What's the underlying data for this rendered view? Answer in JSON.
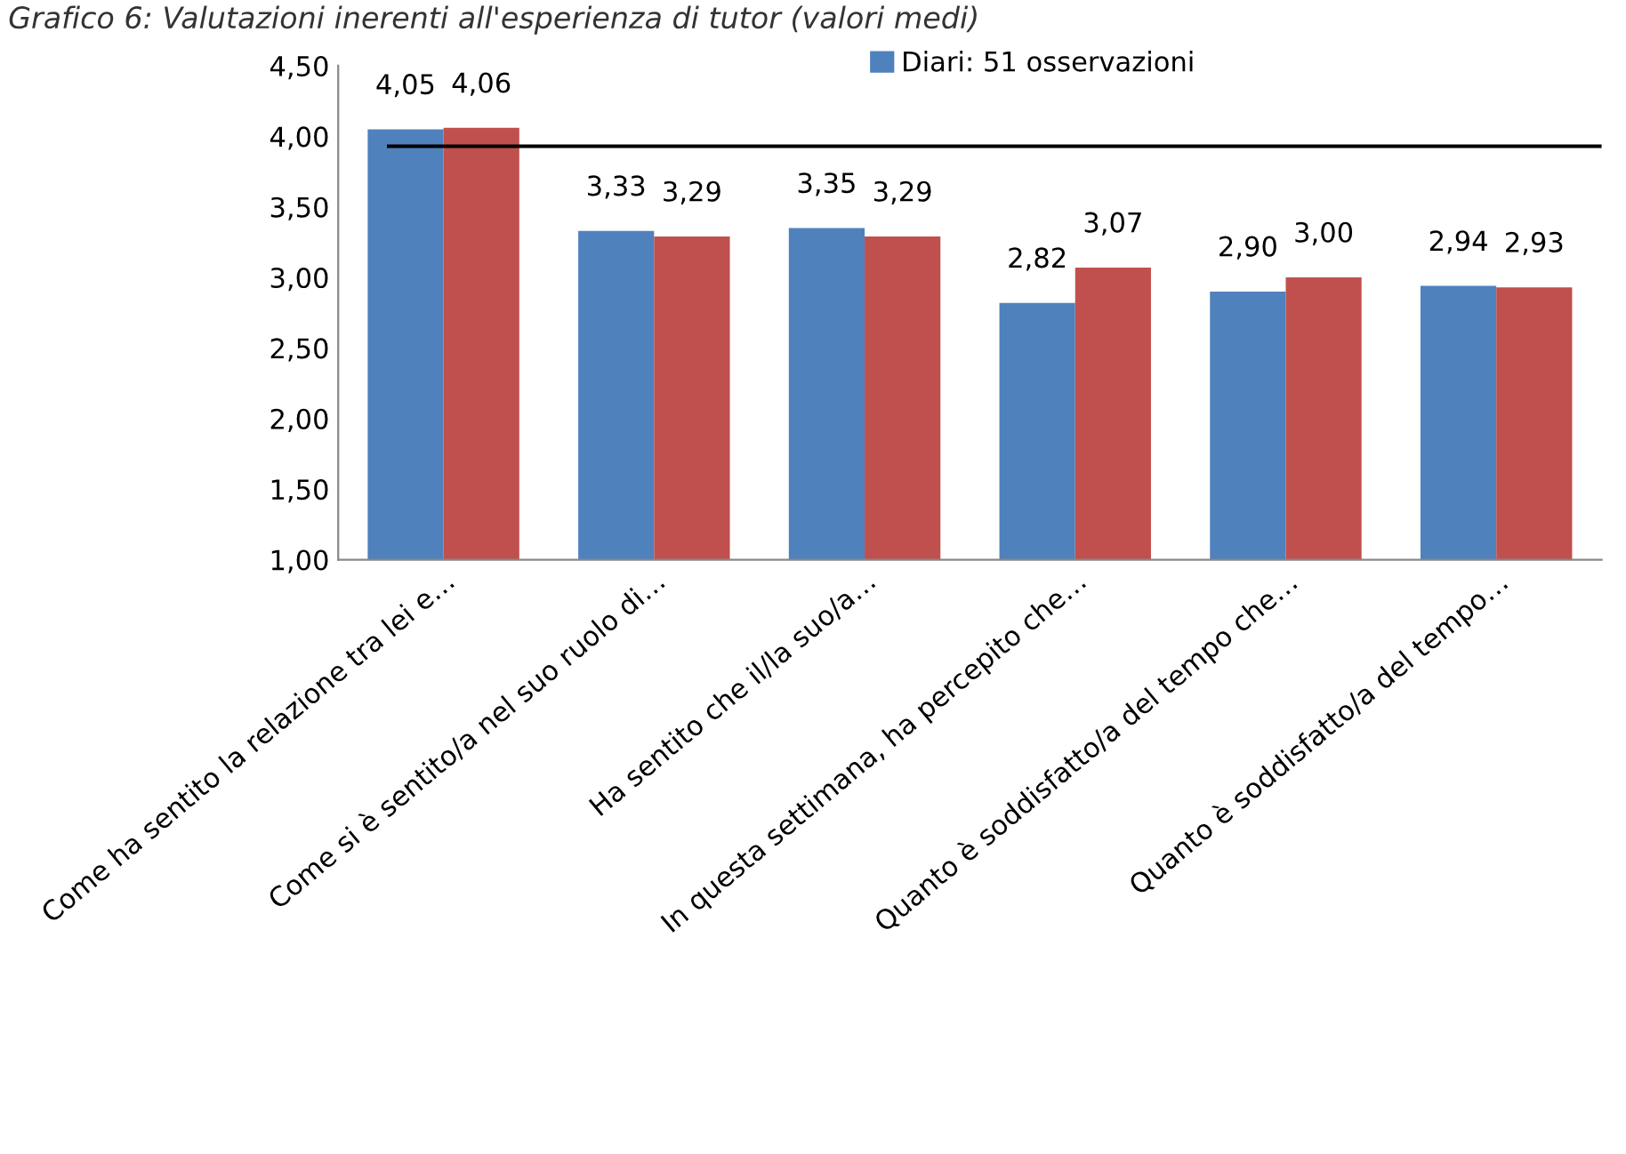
{
  "chart_data": {
    "type": "bar",
    "title": "Grafico 6: Valutazioni inerenti all'esperienza di tutor (valori medi)",
    "categories": [
      "Come ha sentito la relazione tra lei e…",
      "Come si è sentito/a nel suo ruolo di…",
      "Ha sentito che il/la suo/a…",
      "In questa settimana, ha percepito che…",
      "Quanto è soddisfatto/a del tempo che…",
      "Quanto è soddisfatto/a del tempo…"
    ],
    "series": [
      {
        "name": "Diari: 51 osservazioni",
        "color": "#4f81bd",
        "values": [
          4.05,
          3.33,
          3.35,
          2.82,
          2.9,
          2.94
        ],
        "value_labels": [
          "4,05",
          "3,33",
          "3,35",
          "2,82",
          "2,90",
          "2,94"
        ]
      },
      {
        "color": "#c0504d",
        "values": [
          4.06,
          3.29,
          3.29,
          3.07,
          3.0,
          2.93
        ],
        "value_labels": [
          "4,06",
          "3,29",
          "3,29",
          "3,07",
          "3,00",
          "2,93"
        ]
      }
    ],
    "ylim": [
      1.0,
      4.5
    ],
    "yticks": [
      {
        "value": 1.0,
        "label": "1,00"
      },
      {
        "value": 1.5,
        "label": "1,50"
      },
      {
        "value": 2.0,
        "label": "2,00"
      },
      {
        "value": 2.5,
        "label": "2,50"
      },
      {
        "value": 3.0,
        "label": "3,00"
      },
      {
        "value": 3.5,
        "label": "3,50"
      },
      {
        "value": 4.0,
        "label": "4,00"
      },
      {
        "value": 4.5,
        "label": "4,50"
      }
    ],
    "ref_lines": [
      {
        "axis": "y",
        "value": 3.93,
        "color": "#000000"
      }
    ],
    "grid": false,
    "legend": "top"
  }
}
